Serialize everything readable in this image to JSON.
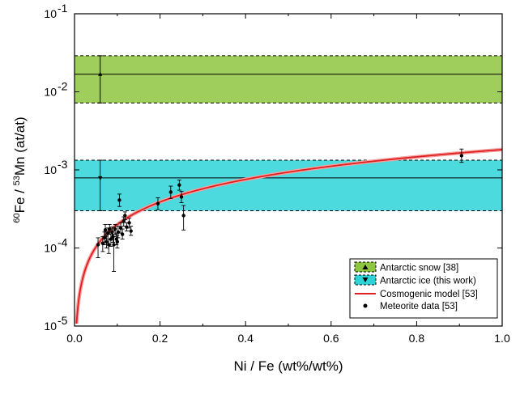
{
  "chart_data": {
    "type": "scatter",
    "xlabel": "Ni / Fe (wt%/wt%)",
    "ylabel_parts": {
      "sup1": "60",
      "a": "Fe / ",
      "sup2": "53",
      "b": "Mn (at/at)"
    },
    "x_scale": "linear",
    "y_scale": "log",
    "xlim": [
      0.0,
      1.0
    ],
    "ylim": [
      1e-05,
      0.1
    ],
    "x_ticks": [
      0.0,
      0.2,
      0.4,
      0.6,
      0.8,
      1.0
    ],
    "x_tick_labels": [
      "0.0",
      "0.2",
      "0.4",
      "0.6",
      "0.8",
      "1.0"
    ],
    "y_ticks": [
      1e-05,
      0.0001,
      0.001,
      0.01,
      0.1
    ],
    "y_tick_labels": [
      {
        "base": "10",
        "exp": "-5"
      },
      {
        "base": "10",
        "exp": "-4"
      },
      {
        "base": "10",
        "exp": "-3"
      },
      {
        "base": "10",
        "exp": "-2"
      },
      {
        "base": "10",
        "exp": "-1"
      }
    ],
    "legend_position": "bottom-right",
    "colors": {
      "snow_fill": "#8ec63f",
      "ice_fill": "#2ed3d8",
      "model_line": "#e02020",
      "points": "#000000"
    },
    "bands": [
      {
        "name": "Antarctic snow [38]",
        "low": 0.0072,
        "high": 0.029,
        "center": 0.0168,
        "marker_x": 0.06,
        "marker": "triangle-up",
        "color": "#8ec63f"
      },
      {
        "name": "Antarctic ice (this work)",
        "low": 0.0003,
        "high": 0.00133,
        "center": 0.00079,
        "marker_x": 0.06,
        "marker": "triangle-down",
        "color": "#2ed3d8"
      }
    ],
    "model": {
      "name": "Cosmogenic model [53]",
      "form": "y = a * x^b",
      "a": 0.00182,
      "b": 0.96
    },
    "meteorites": {
      "name": "Meteorite data [53]",
      "points": [
        {
          "x": 0.055,
          "y": 0.00011,
          "lo": 7.5e-05,
          "hi": 0.000135
        },
        {
          "x": 0.066,
          "y": 0.000115,
          "lo": 9e-05,
          "hi": 0.00014
        },
        {
          "x": 0.07,
          "y": 0.000135,
          "lo": 0.00011,
          "hi": 0.00016
        },
        {
          "x": 0.072,
          "y": 0.00017,
          "lo": 0.00014,
          "hi": 0.0002
        },
        {
          "x": 0.075,
          "y": 0.00012,
          "lo": 0.0001,
          "hi": 0.000145
        },
        {
          "x": 0.078,
          "y": 0.000155,
          "lo": 0.00013,
          "hi": 0.00018
        },
        {
          "x": 0.08,
          "y": 0.00011,
          "lo": 8.5e-05,
          "hi": 0.00013
        },
        {
          "x": 0.082,
          "y": 0.000175,
          "lo": 0.00015,
          "hi": 0.0002
        },
        {
          "x": 0.085,
          "y": 0.00013,
          "lo": 0.000105,
          "hi": 0.00016
        },
        {
          "x": 0.088,
          "y": 0.00016,
          "lo": 0.000135,
          "hi": 0.000185
        },
        {
          "x": 0.09,
          "y": 0.00014,
          "lo": 0.000118,
          "hi": 0.000165
        },
        {
          "x": 0.092,
          "y": 0.00011,
          "lo": 5e-05,
          "hi": 0.00014
        },
        {
          "x": 0.095,
          "y": 0.000175,
          "lo": 0.00015,
          "hi": 0.0002
        },
        {
          "x": 0.098,
          "y": 0.00013,
          "lo": 0.00011,
          "hi": 0.000155
        },
        {
          "x": 0.1,
          "y": 0.00012,
          "lo": 0.0001,
          "hi": 0.000145
        },
        {
          "x": 0.102,
          "y": 0.00016,
          "lo": 0.000135,
          "hi": 0.00019
        },
        {
          "x": 0.105,
          "y": 0.00041,
          "lo": 0.00034,
          "hi": 0.00049
        },
        {
          "x": 0.108,
          "y": 0.00018,
          "lo": 0.000155,
          "hi": 0.00021
        },
        {
          "x": 0.112,
          "y": 0.00015,
          "lo": 0.00013,
          "hi": 0.000175
        },
        {
          "x": 0.115,
          "y": 0.00022,
          "lo": 0.00019,
          "hi": 0.00025
        },
        {
          "x": 0.118,
          "y": 0.00026,
          "lo": 0.00023,
          "hi": 0.00029
        },
        {
          "x": 0.122,
          "y": 0.000185,
          "lo": 0.000165,
          "hi": 0.00021
        },
        {
          "x": 0.128,
          "y": 0.00021,
          "lo": 0.00018,
          "hi": 0.00024
        },
        {
          "x": 0.132,
          "y": 0.000165,
          "lo": 0.000145,
          "hi": 0.00019
        },
        {
          "x": 0.195,
          "y": 0.00037,
          "lo": 0.00031,
          "hi": 0.00044
        },
        {
          "x": 0.225,
          "y": 0.00052,
          "lo": 0.00043,
          "hi": 0.00062
        },
        {
          "x": 0.245,
          "y": 0.00064,
          "lo": 0.00055,
          "hi": 0.00074
        },
        {
          "x": 0.25,
          "y": 0.00045,
          "lo": 0.00038,
          "hi": 0.00053
        },
        {
          "x": 0.255,
          "y": 0.00026,
          "lo": 0.00017,
          "hi": 0.00035
        },
        {
          "x": 0.905,
          "y": 0.00152,
          "lo": 0.00125,
          "hi": 0.00185
        }
      ]
    }
  }
}
